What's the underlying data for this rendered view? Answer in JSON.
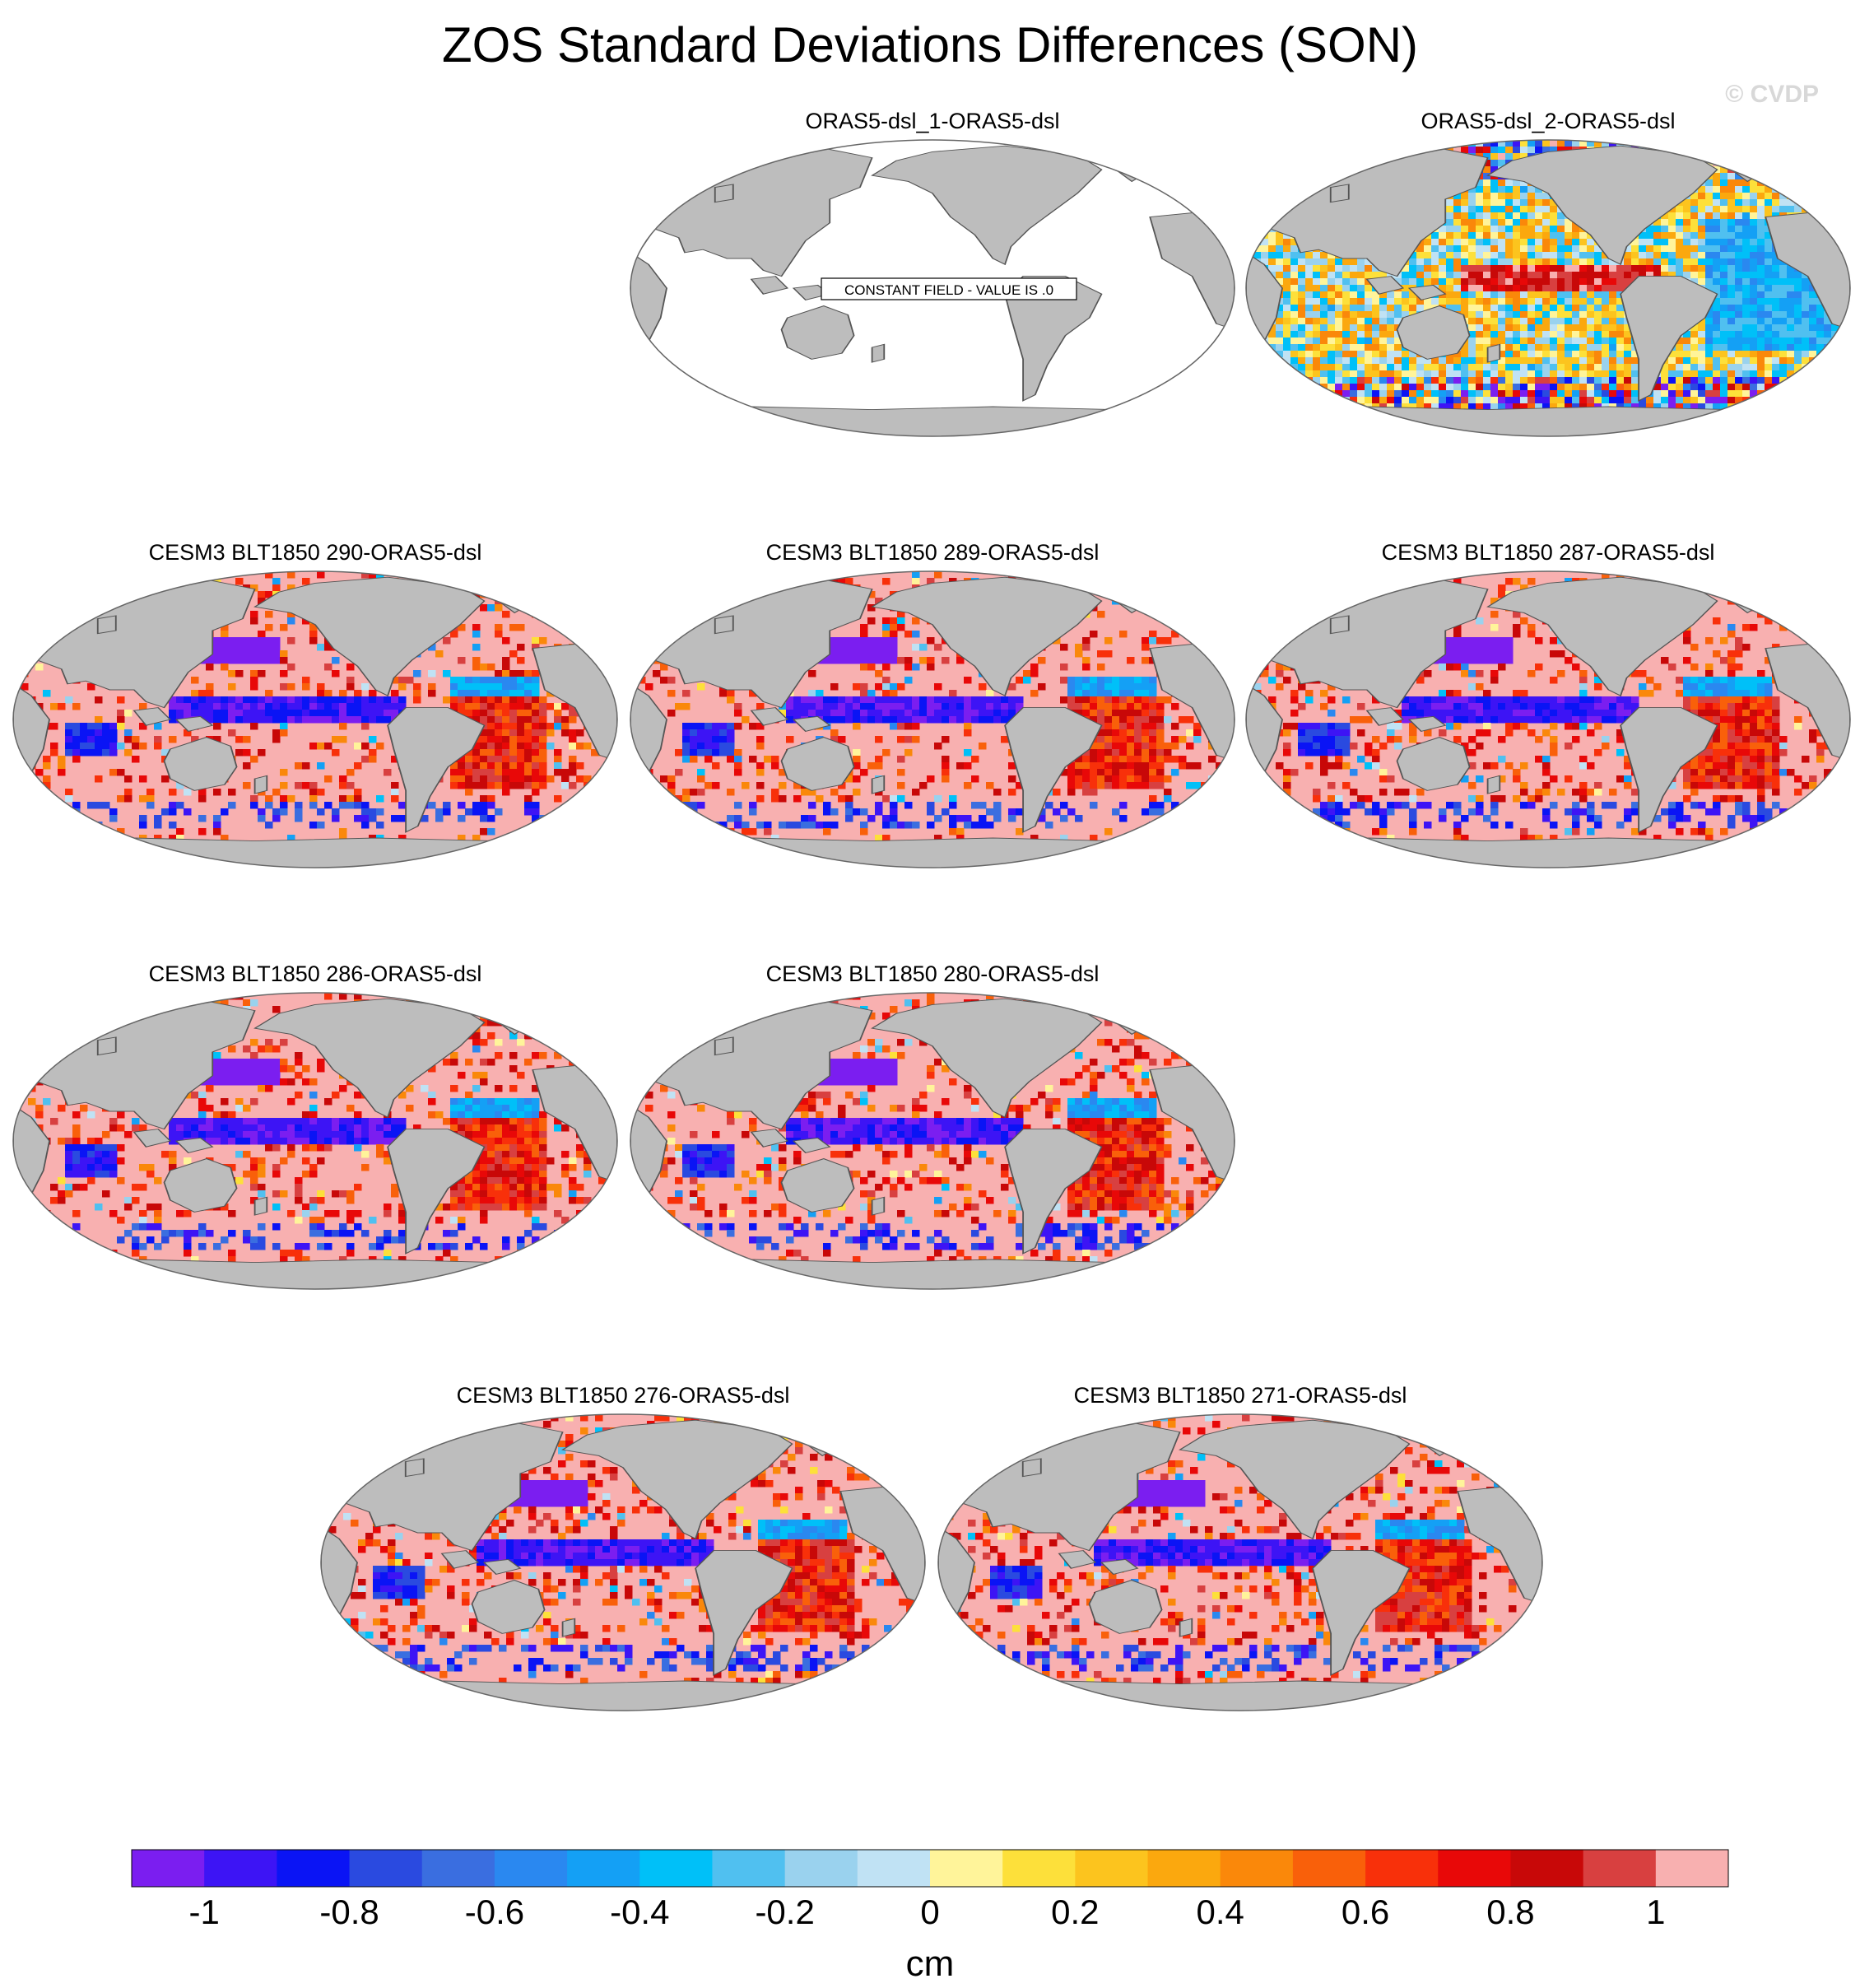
{
  "figure": {
    "title": "ZOS Standard Deviations Differences (SON)",
    "watermark": "© CVDP"
  },
  "chart_data": {
    "type": "map-panels",
    "projection": "Robinson (Pacific-centred)",
    "panels": [
      {
        "title": "ORAS5-dsl_1-ORAS5-dsl",
        "pattern": "constant",
        "note": "CONSTANT FIELD - VALUE IS .0"
      },
      {
        "title": "ORAS5-dsl_2-ORAS5-dsl",
        "pattern": "obs"
      },
      {
        "title": "CESM3 BLT1850 290-ORAS5-dsl",
        "pattern": "model"
      },
      {
        "title": "CESM3 BLT1850 289-ORAS5-dsl",
        "pattern": "model"
      },
      {
        "title": "CESM3 BLT1850 287-ORAS5-dsl",
        "pattern": "model"
      },
      {
        "title": "CESM3 BLT1850 286-ORAS5-dsl",
        "pattern": "model"
      },
      {
        "title": "CESM3 BLT1850 280-ORAS5-dsl",
        "pattern": "model"
      },
      {
        "title": "CESM3 BLT1850 276-ORAS5-dsl",
        "pattern": "model"
      },
      {
        "title": "CESM3 BLT1850 271-ORAS5-dsl",
        "pattern": "model"
      }
    ],
    "colorbar": {
      "unit": "cm",
      "range": [
        -1.1,
        1.1
      ],
      "colors": [
        "#7b1ef0",
        "#3d14f5",
        "#0a14f5",
        "#2a4ae0",
        "#3a6ee0",
        "#2a88f0",
        "#14a0f5",
        "#00c0f8",
        "#50c0f0",
        "#9ad2ee",
        "#c0e2f4",
        "#fff49a",
        "#fde03a",
        "#fcc41e",
        "#fba80e",
        "#fa880a",
        "#f9600a",
        "#f8300a",
        "#e80808",
        "#c80808",
        "#d84040",
        "#f8b0b0"
      ],
      "ticks": [
        "-1",
        "-0.8",
        "-0.6",
        "-0.4",
        "-0.2",
        "0",
        "0.2",
        "0.4",
        "0.6",
        "0.8",
        "1"
      ]
    }
  },
  "colors": {
    "land": "#bdbdbd",
    "ocean_default": "#f8b0b0",
    "outline": "#666666"
  }
}
